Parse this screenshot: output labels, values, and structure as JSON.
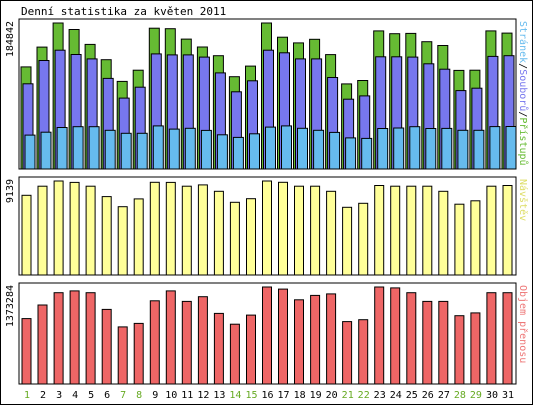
{
  "title": "Denní statistika za květen 2011",
  "days": [
    "1",
    "2",
    "3",
    "4",
    "5",
    "6",
    "7",
    "8",
    "9",
    "10",
    "11",
    "12",
    "13",
    "14",
    "15",
    "16",
    "17",
    "18",
    "19",
    "20",
    "21",
    "22",
    "23",
    "24",
    "25",
    "26",
    "27",
    "28",
    "29",
    "30",
    "31"
  ],
  "weekend_days": [
    "1",
    "7",
    "8",
    "14",
    "15",
    "21",
    "22",
    "28",
    "29"
  ],
  "colors": {
    "pristupy": "#66bb33",
    "soubory": "#7777ee",
    "stranky": "#66bbee",
    "navstevy": "#ffff99",
    "prenos": "#ee6666",
    "weekday_label": "#000000",
    "weekend_label": "#66aa22"
  },
  "chart_data": [
    {
      "type": "bar",
      "name": "hits-files-pages",
      "ymax_label": "184842",
      "ylim": [
        0,
        184842
      ],
      "legend_parts": [
        {
          "text": "Stránek",
          "color": "#66bbee"
        },
        {
          "text": "/",
          "color": "#000000"
        },
        {
          "text": "Souborů",
          "color": "#7777ee"
        },
        {
          "text": "/",
          "color": "#000000"
        },
        {
          "text": "Přístupů",
          "color": "#66bb33"
        }
      ],
      "series": [
        {
          "name": "Přístupů",
          "values": [
            129300,
            154300,
            184800,
            176600,
            157800,
            138400,
            110900,
            125100,
            178200,
            177600,
            164400,
            154500,
            143400,
            116900,
            130300,
            184800,
            166900,
            159600,
            164200,
            144800,
            107700,
            112000,
            174900,
            171300,
            171700,
            161200,
            156400,
            124800,
            125100,
            174900,
            172000
          ]
        },
        {
          "name": "Souborů",
          "values": [
            107900,
            137400,
            150400,
            144900,
            139400,
            114700,
            89800,
            103500,
            145700,
            144400,
            144400,
            141700,
            121700,
            97700,
            111700,
            150400,
            147100,
            139400,
            139400,
            115900,
            88400,
            92600,
            142100,
            142100,
            141700,
            133200,
            126400,
            99200,
            102300,
            142600,
            143500
          ]
        },
        {
          "name": "Stránek",
          "values": [
            42900,
            46600,
            52600,
            53600,
            53600,
            49000,
            45200,
            45200,
            54600,
            50500,
            51500,
            48900,
            43300,
            40000,
            44600,
            53100,
            54600,
            51500,
            49000,
            46400,
            39400,
            38700,
            51300,
            51900,
            53600,
            51300,
            51400,
            49000,
            49000,
            53700,
            53800
          ]
        }
      ]
    },
    {
      "type": "bar",
      "name": "visits",
      "ymax_label": "9139",
      "ylim": [
        0,
        9139
      ],
      "legend_parts": [
        {
          "text": "Návštěv",
          "color": "#dddd66"
        }
      ],
      "series": [
        {
          "name": "Návštěv",
          "values": [
            7750,
            8630,
            9139,
            9000,
            8630,
            7620,
            6640,
            7400,
            9010,
            9000,
            8630,
            8760,
            8140,
            7070,
            7420,
            9139,
            9010,
            8630,
            8630,
            8140,
            6580,
            6970,
            8700,
            8630,
            8630,
            8630,
            8140,
            6880,
            7210,
            8630,
            8700
          ]
        }
      ]
    },
    {
      "type": "bar",
      "name": "traffic",
      "ymax_label": "1373284",
      "ylim": [
        0,
        1373284
      ],
      "legend_parts": [
        {
          "text": "Objem přenosu",
          "color": "#ee7777"
        }
      ],
      "series": [
        {
          "name": "Objem přenosu",
          "values": [
            926000,
            1118000,
            1292000,
            1318000,
            1292000,
            1056000,
            809000,
            858000,
            1178000,
            1318000,
            1170000,
            1236000,
            1000000,
            846000,
            975000,
            1373284,
            1344000,
            1192000,
            1254000,
            1275000,
            883000,
            910000,
            1373284,
            1360000,
            1292000,
            1170000,
            1170000,
            967000,
            1006000,
            1292000,
            1292000
          ]
        }
      ]
    }
  ]
}
